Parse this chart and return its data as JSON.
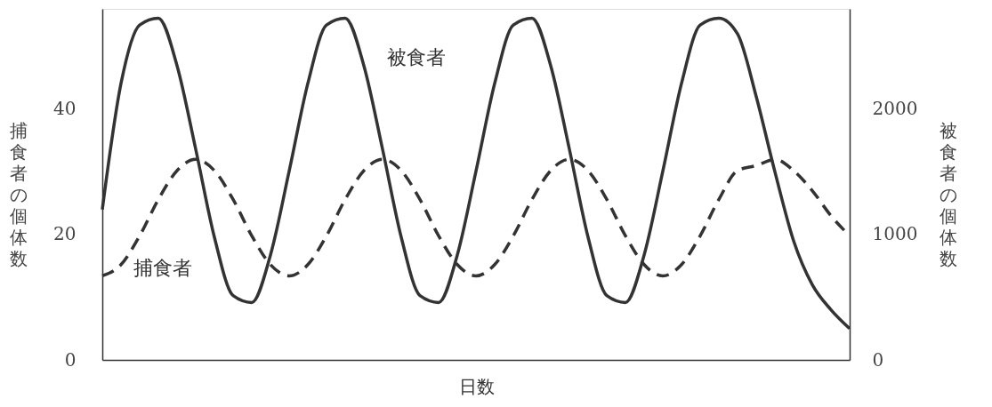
{
  "chart_data": {
    "type": "line",
    "xlabel": "日数",
    "ylabel": "捕食者の個体数",
    "y2label": "被食者の個体数",
    "categories": [
      null,
      null,
      null,
      null,
      null,
      null,
      null,
      null,
      null,
      null,
      null,
      null,
      null,
      null,
      null,
      null,
      null,
      null,
      null,
      null,
      null,
      null,
      null,
      null,
      null,
      null,
      null,
      null,
      null,
      null,
      null,
      null,
      null,
      null,
      null,
      null,
      null,
      null,
      null,
      null,
      null
    ],
    "series": [
      {
        "name": "被食者",
        "color": "#333333",
        "axis": "y2",
        "line_style": "solid",
        "values": [
          1200,
          2205,
          2672,
          2726,
          2347,
          1680,
          978,
          513,
          458,
          837,
          1505,
          2205,
          2672,
          2726,
          2347,
          1680,
          978,
          513,
          458,
          837,
          1505,
          2205,
          2672,
          2726,
          2347,
          1680,
          978,
          513,
          458,
          837,
          1505,
          2205,
          2672,
          2726,
          2600,
          2100,
          1500,
          950,
          600,
          400,
          250
        ]
      },
      {
        "name": "捕食者",
        "color": "#333333",
        "axis": "y",
        "line_style": "dashed",
        "values": [
          13.4,
          15.2,
          19.8,
          25.6,
          30.2,
          32.0,
          30.2,
          25.6,
          19.8,
          15.2,
          13.4,
          15.2,
          19.8,
          25.6,
          30.2,
          32.0,
          30.2,
          25.6,
          19.8,
          15.2,
          13.4,
          15.2,
          19.8,
          25.6,
          30.2,
          32.0,
          30.2,
          25.6,
          19.8,
          15.2,
          13.4,
          15.2,
          19.8,
          25.6,
          30.2,
          31.0,
          32.0,
          30.2,
          27.0,
          23.0,
          19.8
        ]
      }
    ],
    "ylim": [
      0,
      56
    ],
    "yticks": [
      0,
      20,
      40
    ],
    "y2lim": [
      0,
      2800
    ],
    "y2ticks": [
      0,
      1000,
      2000
    ],
    "tick_labels": "y",
    "grid": false
  }
}
